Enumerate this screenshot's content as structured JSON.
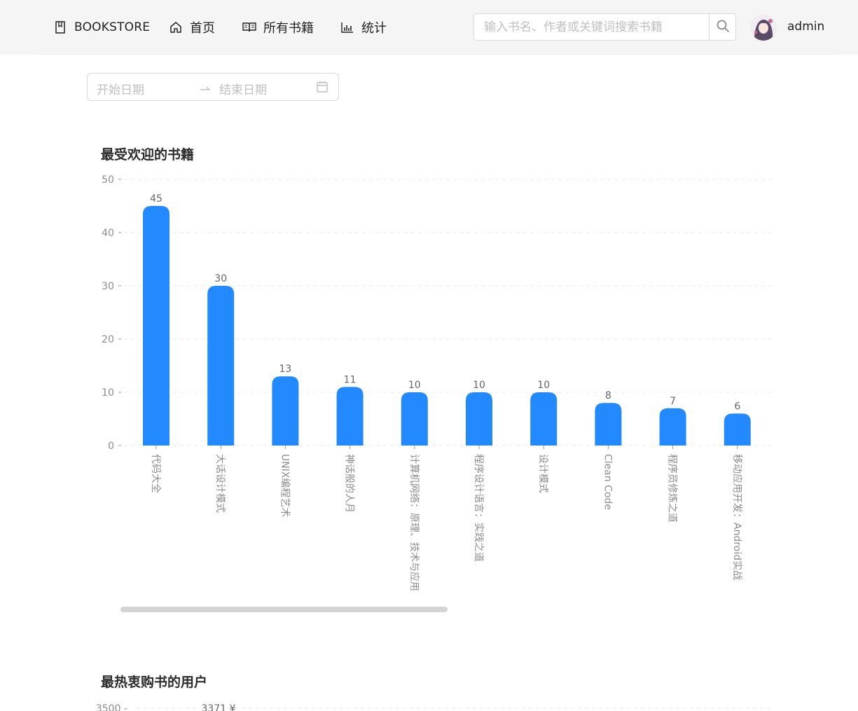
{
  "nav": {
    "brand": "BOOKSTORE",
    "home": "首页",
    "all_books": "所有书籍",
    "stats": "统计",
    "brand_icon": "book-icon",
    "home_icon": "home-icon",
    "books_icon": "open-book-icon",
    "stats_icon": "bar-chart-icon"
  },
  "search": {
    "placeholder": "输入书名、作者或关键词搜索书籍",
    "icon": "search-icon"
  },
  "user": {
    "name": "admin"
  },
  "date_range": {
    "start_placeholder": "开始日期",
    "end_placeholder": "结束日期"
  },
  "sections": {
    "popular_books": "最受欢迎的书籍",
    "top_buyers": "最热衷购书的用户"
  },
  "colors": {
    "bar": "#2389ff",
    "header_bg": "#f5f5f5"
  },
  "chart_data": [
    {
      "type": "bar",
      "title": "最受欢迎的书籍",
      "categories": [
        "代码大全",
        "大话设计模式",
        "UNIX编程艺术",
        "神话般的人月",
        "计算机网络：原理、技术与应用",
        "程序设计语言：实践之道",
        "设计模式",
        "Clean Code",
        "程序员修炼之道",
        "移动应用开发：Android实战"
      ],
      "values": [
        45,
        30,
        13,
        11,
        10,
        10,
        10,
        8,
        7,
        6
      ],
      "ylim": [
        0,
        50
      ],
      "yticks": [
        0,
        10,
        20,
        30,
        40,
        50
      ],
      "grid": true,
      "legend": "none"
    },
    {
      "type": "bar",
      "title": "最热衷购书的用户",
      "yticks": [
        3500
      ],
      "data_labels": [
        "3371 ¥"
      ],
      "grid": true
    }
  ]
}
